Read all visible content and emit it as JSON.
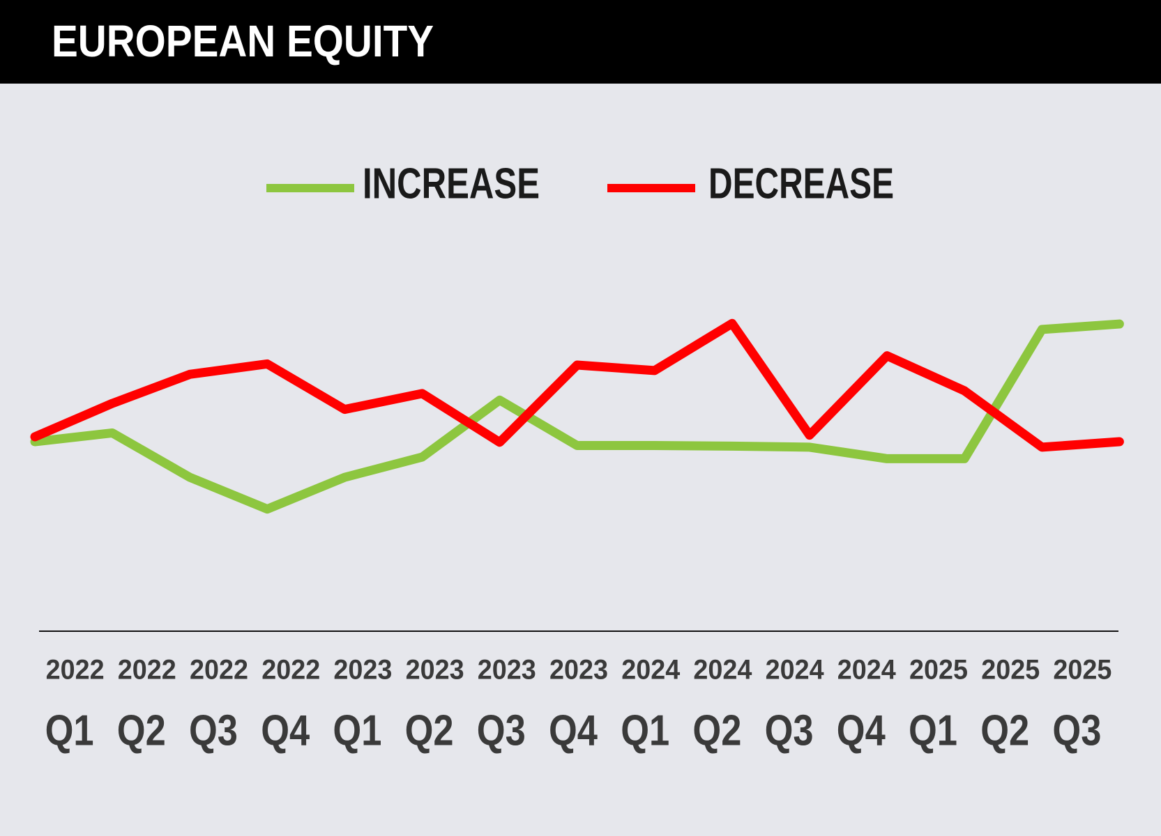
{
  "chart_data": {
    "type": "line",
    "title": "EUROPEAN EQUITY",
    "categories": [
      "Q1",
      "Q2",
      "Q3",
      "Q4",
      "Q1",
      "Q2",
      "Q3",
      "Q4",
      "Q1",
      "Q2",
      "Q3",
      "Q4",
      "Q1",
      "Q2",
      "Q3"
    ],
    "category_years": [
      "2022",
      "2022",
      "2022",
      "2022",
      "2023",
      "2023",
      "2023",
      "2023",
      "2024",
      "2024",
      "2024",
      "2024",
      "2025",
      "2025",
      "2025"
    ],
    "series": [
      {
        "name": "INCREASE",
        "color": "#8dc63f",
        "values": [
          34.6,
          36.2,
          28.1,
          22.3,
          28.1,
          31.8,
          42.2,
          33.9,
          33.9,
          33.8,
          33.6,
          31.5,
          31.5,
          55.1,
          56.1
        ]
      },
      {
        "name": "DECREASE",
        "color": "#ff0000",
        "values": [
          35.5,
          41.6,
          46.9,
          48.8,
          40.5,
          43.4,
          34.5,
          48.6,
          47.6,
          56.2,
          35.8,
          50.3,
          43.9,
          33.6,
          34.6
        ]
      }
    ]
  }
}
